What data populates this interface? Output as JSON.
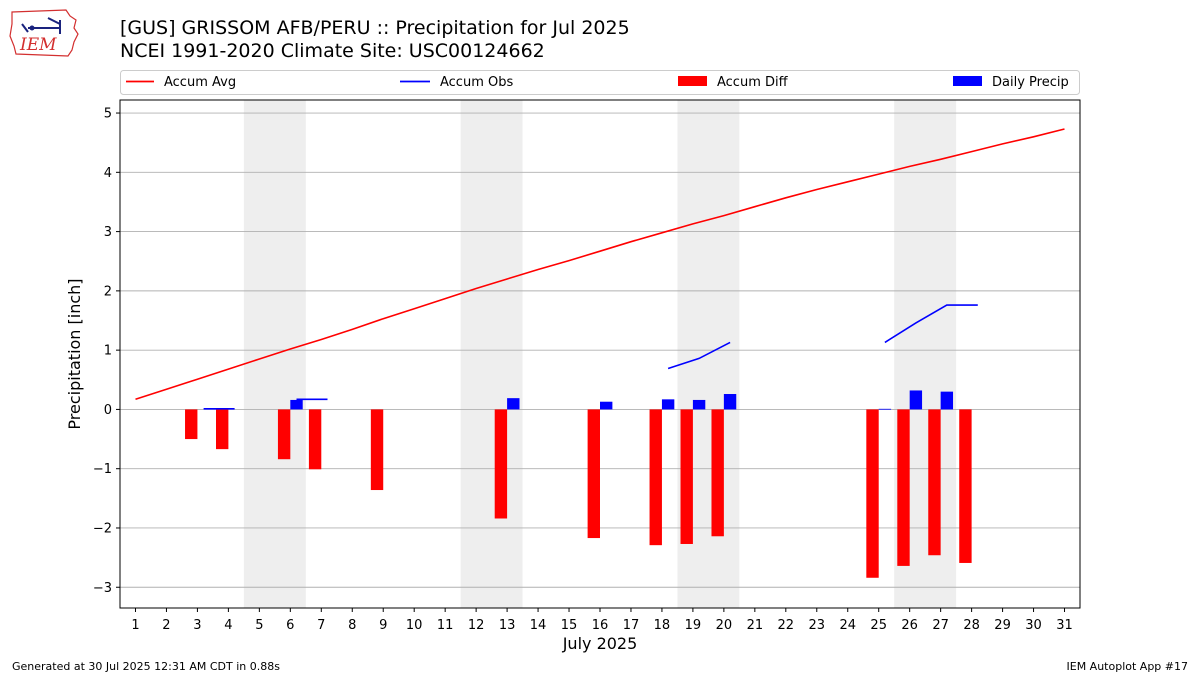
{
  "header": {
    "title_line1": "[GUS] GRISSOM AFB/PERU :: Precipitation for Jul 2025",
    "title_line2": "NCEI 1991-2020 Climate Site: USC00124662",
    "logo_text": "IEM"
  },
  "footer": {
    "left": "Generated at 30 Jul 2025 12:31 AM CDT in 0.88s",
    "right": "IEM Autoplot App #17"
  },
  "colors": {
    "accum_avg": "#ff0000",
    "accum_obs": "#0000ff",
    "accum_diff": "#ff0000",
    "daily_precip": "#0000ff",
    "weekend_shade": "#eeeeee",
    "grid": "#b0b0b0"
  },
  "chart_data": {
    "type": "bar",
    "xlabel": "July 2025",
    "ylabel": "Precipitation [inch]",
    "xlim": [
      0.5,
      31.5
    ],
    "ylim": [
      -3.35,
      5.22
    ],
    "x_ticks": [
      1,
      2,
      3,
      4,
      5,
      6,
      7,
      8,
      9,
      10,
      11,
      12,
      13,
      14,
      15,
      16,
      17,
      18,
      19,
      20,
      21,
      22,
      23,
      24,
      25,
      26,
      27,
      28,
      29,
      30,
      31
    ],
    "y_ticks": [
      -3,
      -2,
      -1,
      0,
      1,
      2,
      3,
      4,
      5
    ],
    "grid": "horizontal",
    "legend_position": "top",
    "legend": [
      "Accum Avg",
      "Accum Obs",
      "Accum Diff",
      "Daily Precip"
    ],
    "shaded_day_ranges": [
      [
        5,
        6
      ],
      [
        12,
        13
      ],
      [
        19,
        20
      ],
      [
        26,
        27
      ]
    ],
    "series": [
      {
        "name": "Accum Avg",
        "kind": "line",
        "x": [
          1,
          2,
          3,
          4,
          5,
          6,
          7,
          8,
          9,
          10,
          11,
          12,
          13,
          14,
          15,
          16,
          17,
          18,
          19,
          20,
          21,
          22,
          23,
          24,
          25,
          26,
          27,
          28,
          29,
          30,
          31
        ],
        "values": [
          0.17,
          0.34,
          0.51,
          0.68,
          0.85,
          1.02,
          1.18,
          1.35,
          1.53,
          1.7,
          1.87,
          2.04,
          2.2,
          2.36,
          2.51,
          2.67,
          2.83,
          2.98,
          3.13,
          3.27,
          3.42,
          3.57,
          3.71,
          3.84,
          3.97,
          4.1,
          4.22,
          4.35,
          4.48,
          4.6,
          4.73
        ]
      },
      {
        "name": "Accum Obs",
        "kind": "line",
        "x": [
          3,
          4,
          5,
          6,
          7,
          8,
          9,
          10,
          11,
          12,
          13,
          14,
          15,
          16,
          17,
          18,
          19,
          20,
          21,
          22,
          23,
          24,
          25,
          26,
          27,
          28
        ],
        "values": [
          0.01,
          0.01,
          null,
          0.17,
          0.17,
          null,
          null,
          null,
          null,
          null,
          null,
          null,
          null,
          null,
          null,
          0.69,
          0.86,
          1.13,
          null,
          null,
          null,
          null,
          1.13,
          1.46,
          1.76,
          1.76
        ]
      },
      {
        "name": "Accum Diff",
        "kind": "bar",
        "x": [
          3,
          4,
          6,
          7,
          9,
          13,
          16,
          18,
          19,
          20,
          25,
          26,
          27,
          28
        ],
        "values": [
          -0.5,
          -0.67,
          -0.84,
          -1.01,
          -1.36,
          -1.84,
          -2.17,
          -2.29,
          -2.27,
          -2.14,
          -2.84,
          -2.64,
          -2.46,
          -2.59
        ]
      },
      {
        "name": "Daily Precip",
        "kind": "bar",
        "x": [
          6,
          13,
          16,
          18,
          19,
          20,
          25,
          26,
          27
        ],
        "values": [
          0.16,
          0.19,
          0.13,
          0.17,
          0.16,
          0.26,
          0.01,
          0.32,
          0.3
        ]
      }
    ]
  }
}
